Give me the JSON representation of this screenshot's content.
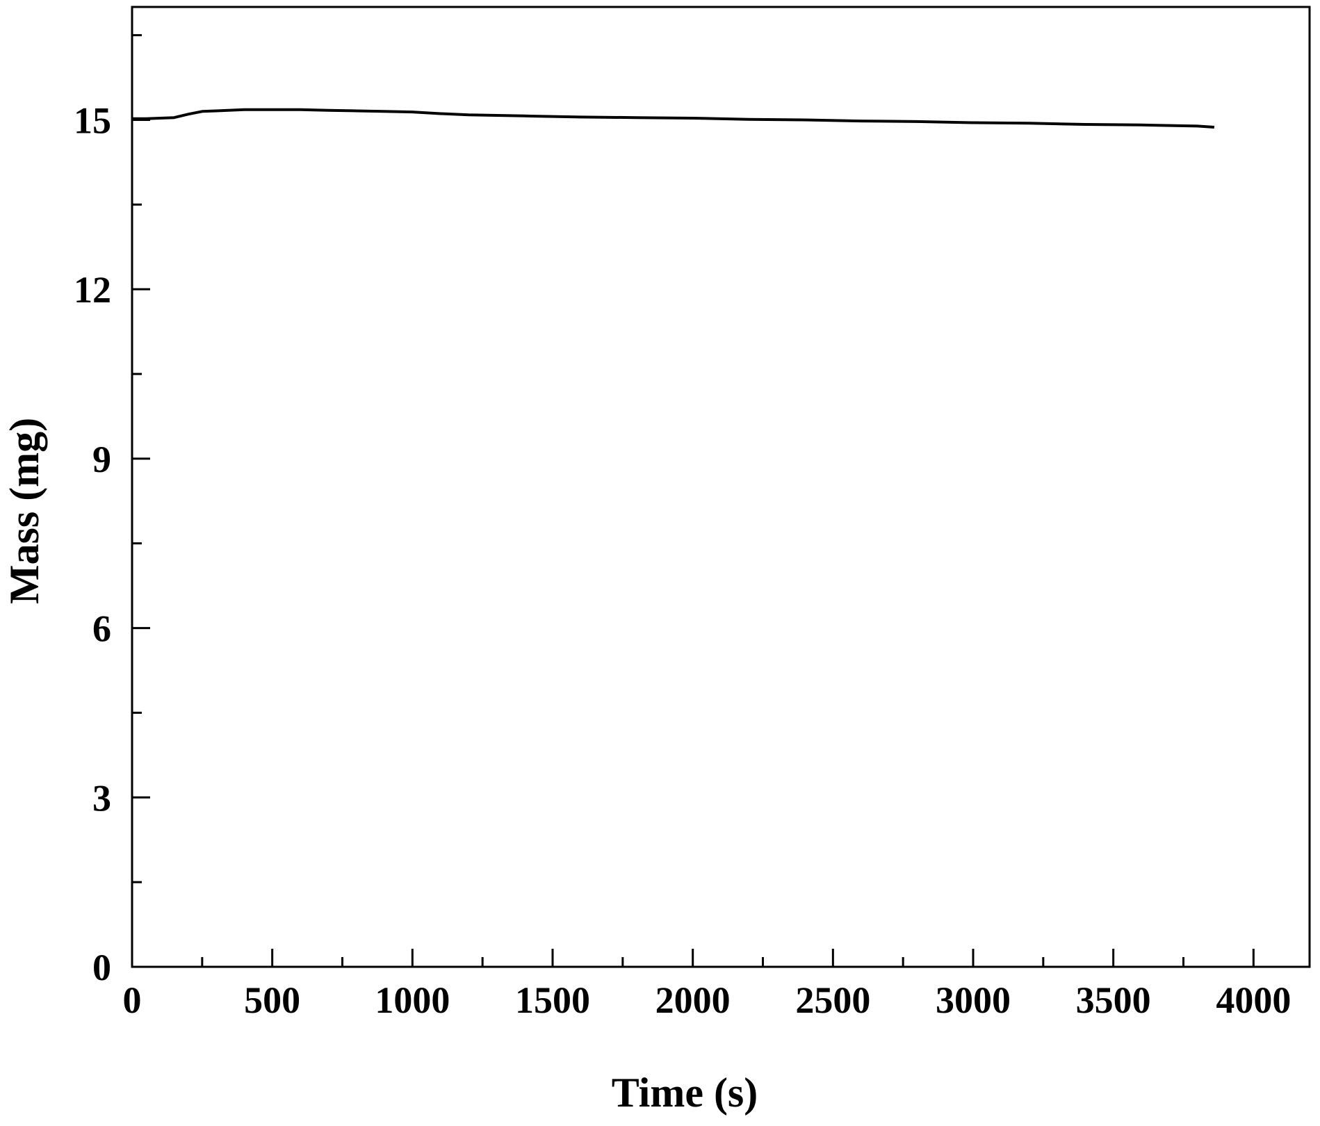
{
  "chart_data": {
    "type": "line",
    "title": "",
    "xlabel": "Time (s)",
    "ylabel": "Mass (mg)",
    "xlim": [
      0,
      4200
    ],
    "ylim": [
      0,
      17
    ],
    "x_ticks": [
      0,
      500,
      1000,
      1500,
      2000,
      2500,
      3000,
      3500,
      4000
    ],
    "x_tick_labels": [
      "0",
      "500",
      "1000",
      "1500",
      "2000",
      "2500",
      "3000",
      "3500",
      "4000"
    ],
    "y_ticks": [
      0,
      3,
      6,
      9,
      12,
      15
    ],
    "y_tick_labels": [
      "0",
      "3",
      "6",
      "9",
      "12",
      "15"
    ],
    "x_minor_step": 250,
    "y_minor_step": 1.5,
    "grid": false,
    "legend": "none",
    "line_color": "#000000",
    "series": [
      {
        "x": [
          0,
          50,
          100,
          150,
          200,
          250,
          300,
          400,
          500,
          600,
          700,
          800,
          900,
          1000,
          1100,
          1200,
          1400,
          1600,
          1800,
          2000,
          2200,
          2400,
          2600,
          2800,
          3000,
          3200,
          3400,
          3600,
          3800,
          3860
        ],
        "y": [
          15.02,
          15.02,
          15.03,
          15.04,
          15.1,
          15.15,
          15.16,
          15.18,
          15.18,
          15.18,
          15.17,
          15.16,
          15.15,
          15.14,
          15.11,
          15.09,
          15.07,
          15.05,
          15.04,
          15.03,
          15.01,
          15.0,
          14.98,
          14.97,
          14.95,
          14.94,
          14.92,
          14.91,
          14.89,
          14.87
        ]
      }
    ]
  }
}
